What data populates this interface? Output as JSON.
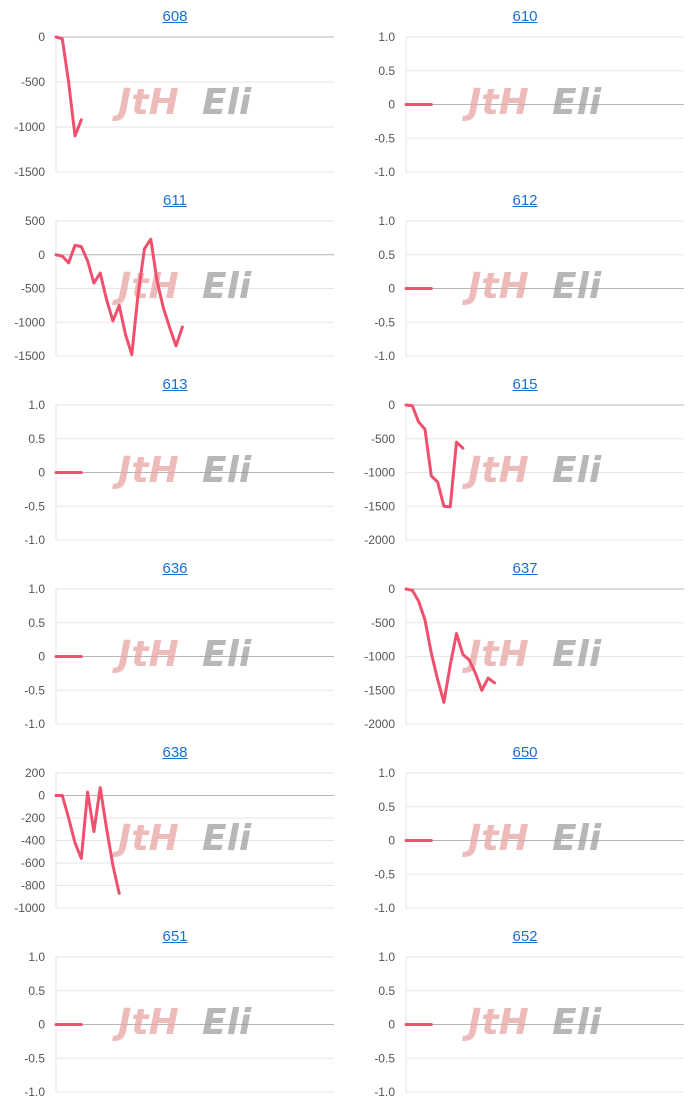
{
  "colors": {
    "series": "#f0506e",
    "grid": "#e6e6e6",
    "zero_line": "#b5b5b5",
    "title_link": "#1a6fd1",
    "watermark_left": "#e8a6a4",
    "watermark_right": "#9a9a9a"
  },
  "watermark": {
    "left": "ＪＴＨ",
    "right": "ＥＬＩ",
    "left_text": "JtH",
    "right_text": "Eli"
  },
  "chart_data": [
    {
      "type": "line",
      "title": "608",
      "legend": "none",
      "grid": true,
      "ylim": [
        -1500,
        0
      ],
      "yticks": [
        0,
        -500,
        -1000,
        -1500
      ],
      "ytick_labels": [
        "0",
        "-500",
        "-1000",
        "-1500"
      ],
      "series": [
        {
          "values": [
            0,
            -20,
            -500,
            -1100,
            -920
          ]
        }
      ],
      "x_count": 45
    },
    {
      "type": "line",
      "title": "610",
      "legend": "none",
      "grid": true,
      "ylim": [
        -1,
        1
      ],
      "yticks": [
        1,
        0.5,
        0,
        -0.5,
        -1
      ],
      "ytick_labels": [
        "1.0",
        "0.5",
        "0",
        "-0.5",
        "-1.0"
      ],
      "series": [
        {
          "values": [
            0,
            0,
            0,
            0,
            0
          ]
        }
      ],
      "x_count": 45
    },
    {
      "type": "line",
      "title": "611",
      "legend": "none",
      "grid": true,
      "ylim": [
        -1500,
        500
      ],
      "yticks": [
        500,
        0,
        -500,
        -1000,
        -1500
      ],
      "ytick_labels": [
        "500",
        "0",
        "-500",
        "-1000",
        "-1500"
      ],
      "series": [
        {
          "values": [
            0,
            -20,
            -120,
            140,
            120,
            -90,
            -420,
            -270,
            -660,
            -980,
            -750,
            -1180,
            -1480,
            -580,
            90,
            230,
            -390,
            -790,
            -1080,
            -1350,
            -1070
          ]
        }
      ],
      "x_count": 45
    },
    {
      "type": "line",
      "title": "612",
      "legend": "none",
      "grid": true,
      "ylim": [
        -1,
        1
      ],
      "yticks": [
        1,
        0.5,
        0,
        -0.5,
        -1
      ],
      "ytick_labels": [
        "1.0",
        "0.5",
        "0",
        "-0.5",
        "-1.0"
      ],
      "series": [
        {
          "values": [
            0,
            0,
            0,
            0,
            0
          ]
        }
      ],
      "x_count": 45
    },
    {
      "type": "line",
      "title": "613",
      "legend": "none",
      "grid": true,
      "ylim": [
        -1,
        1
      ],
      "yticks": [
        1,
        0.5,
        0,
        -0.5,
        -1
      ],
      "ytick_labels": [
        "1.0",
        "0.5",
        "0",
        "-0.5",
        "-1.0"
      ],
      "series": [
        {
          "values": [
            0,
            0,
            0,
            0,
            0
          ]
        }
      ],
      "x_count": 45
    },
    {
      "type": "line",
      "title": "615",
      "legend": "none",
      "grid": true,
      "ylim": [
        -2000,
        0
      ],
      "yticks": [
        0,
        -500,
        -1000,
        -1500,
        -2000
      ],
      "ytick_labels": [
        "0",
        "-500",
        "-1000",
        "-1500",
        "-2000"
      ],
      "series": [
        {
          "values": [
            0,
            -10,
            -250,
            -360,
            -1050,
            -1140,
            -1500,
            -1510,
            -550,
            -640
          ]
        }
      ],
      "x_count": 45
    },
    {
      "type": "line",
      "title": "636",
      "legend": "none",
      "grid": true,
      "ylim": [
        -1,
        1
      ],
      "yticks": [
        1,
        0.5,
        0,
        -0.5,
        -1
      ],
      "ytick_labels": [
        "1.0",
        "0.5",
        "0",
        "-0.5",
        "-1.0"
      ],
      "series": [
        {
          "values": [
            0,
            0,
            0,
            0,
            0
          ]
        }
      ],
      "x_count": 45
    },
    {
      "type": "line",
      "title": "637",
      "legend": "none",
      "grid": true,
      "ylim": [
        -2000,
        0
      ],
      "yticks": [
        0,
        -500,
        -1000,
        -1500,
        -2000
      ],
      "ytick_labels": [
        "0",
        "-500",
        "-1000",
        "-1500",
        "-2000"
      ],
      "series": [
        {
          "values": [
            0,
            -20,
            -180,
            -460,
            -950,
            -1340,
            -1680,
            -1130,
            -660,
            -970,
            -1050,
            -1250,
            -1500,
            -1320,
            -1390
          ]
        }
      ],
      "x_count": 45
    },
    {
      "type": "line",
      "title": "638",
      "legend": "none",
      "grid": true,
      "ylim": [
        -1000,
        200
      ],
      "yticks": [
        200,
        0,
        -200,
        -400,
        -600,
        -800,
        -1000
      ],
      "ytick_labels": [
        "200",
        "0",
        "-200",
        "-400",
        "-600",
        "-800",
        "-1000"
      ],
      "series": [
        {
          "values": [
            0,
            0,
            -200,
            -420,
            -560,
            30,
            -320,
            70,
            -290,
            -620,
            -870
          ]
        }
      ],
      "x_count": 45
    },
    {
      "type": "line",
      "title": "650",
      "legend": "none",
      "grid": true,
      "ylim": [
        -1,
        1
      ],
      "yticks": [
        1,
        0.5,
        0,
        -0.5,
        -1
      ],
      "ytick_labels": [
        "1.0",
        "0.5",
        "0",
        "-0.5",
        "-1.0"
      ],
      "series": [
        {
          "values": [
            0,
            0,
            0,
            0,
            0
          ]
        }
      ],
      "x_count": 45
    },
    {
      "type": "line",
      "title": "651",
      "legend": "none",
      "grid": true,
      "ylim": [
        -1,
        1
      ],
      "yticks": [
        1,
        0.5,
        0,
        -0.5,
        -1
      ],
      "ytick_labels": [
        "1.0",
        "0.5",
        "0",
        "-0.5",
        "-1.0"
      ],
      "series": [
        {
          "values": [
            0,
            0,
            0,
            0,
            0
          ]
        }
      ],
      "x_count": 45
    },
    {
      "type": "line",
      "title": "652",
      "legend": "none",
      "grid": true,
      "ylim": [
        -1,
        1
      ],
      "yticks": [
        1,
        0.5,
        0,
        -0.5,
        -1
      ],
      "ytick_labels": [
        "1.0",
        "0.5",
        "0",
        "-0.5",
        "-1.0"
      ],
      "series": [
        {
          "values": [
            0,
            0,
            0,
            0,
            0
          ]
        }
      ],
      "x_count": 45
    }
  ]
}
